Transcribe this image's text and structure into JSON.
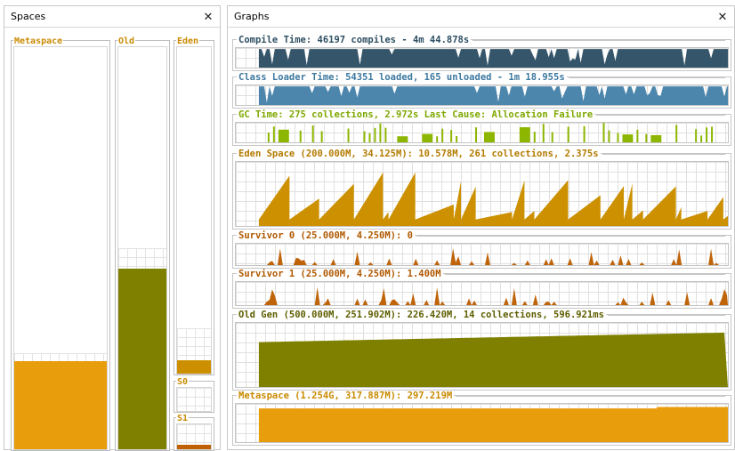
{
  "spaces_panel": {
    "title": "Spaces",
    "close_glyph": "✕",
    "boxes": [
      {
        "key": "metaspace",
        "label": "Metaspace",
        "color": "#e89d0c",
        "fill_fraction": 0.22,
        "grid_fraction": 0.24
      },
      {
        "key": "old",
        "label": "Old",
        "color": "#808000",
        "fill_fraction": 0.45,
        "grid_fraction": 0.5
      },
      {
        "key": "eden",
        "label": "Eden",
        "color": "#cc8f00",
        "fill_fraction": 0.04,
        "grid_fraction": 0.13
      },
      {
        "key": "s0",
        "label": "S0",
        "color": "#c06000",
        "fill_fraction": 0.0,
        "grid_fraction": 1.0
      },
      {
        "key": "s1",
        "label": "S1",
        "color": "#c06000",
        "fill_fraction": 0.17,
        "grid_fraction": 1.0
      }
    ]
  },
  "graphs_panel": {
    "title": "Graphs",
    "close_glyph": "✕",
    "graphs": [
      {
        "key": "compile",
        "label": "Compile Time: 46197 compiles - 4m 44.878s",
        "label_color": "#2e4f63",
        "fill": "#35566a",
        "style": "block"
      },
      {
        "key": "classloader",
        "label": "Class Loader Time: 54351 loaded, 165 unloaded - 1m 18.955s",
        "label_color": "#3c78a0",
        "fill": "#4c86ad",
        "style": "block"
      },
      {
        "key": "gc",
        "label": "GC Time: 275 collections, 2.972s  Last Cause: Allocation Failure",
        "label_color": "#7ea800",
        "fill": "#8db600",
        "style": "bars"
      },
      {
        "key": "eden",
        "label": "Eden Space (200.000M, 34.125M): 10.578M, 261 collections, 2.375s",
        "label_color": "#b37b00",
        "fill": "#cc9000",
        "style": "saw"
      },
      {
        "key": "s0",
        "label": "Survivor 0 (25.000M, 4.250M): 0",
        "label_color": "#b05800",
        "fill": "#c0640a",
        "style": "low"
      },
      {
        "key": "s1",
        "label": "Survivor 1 (25.000M, 4.250M): 1.400M",
        "label_color": "#b05800",
        "fill": "#c0640a",
        "style": "low"
      },
      {
        "key": "oldgen",
        "label": "Old Gen (500.000M, 251.902M): 226.420M, 14 collections, 596.921ms",
        "label_color": "#5e5e00",
        "fill": "#808000",
        "style": "ramp"
      },
      {
        "key": "metaspace",
        "label": "Metaspace (1.254G, 317.887M): 297.219M",
        "label_color": "#c98a00",
        "fill": "#e89d0c",
        "style": "flat"
      }
    ]
  }
}
